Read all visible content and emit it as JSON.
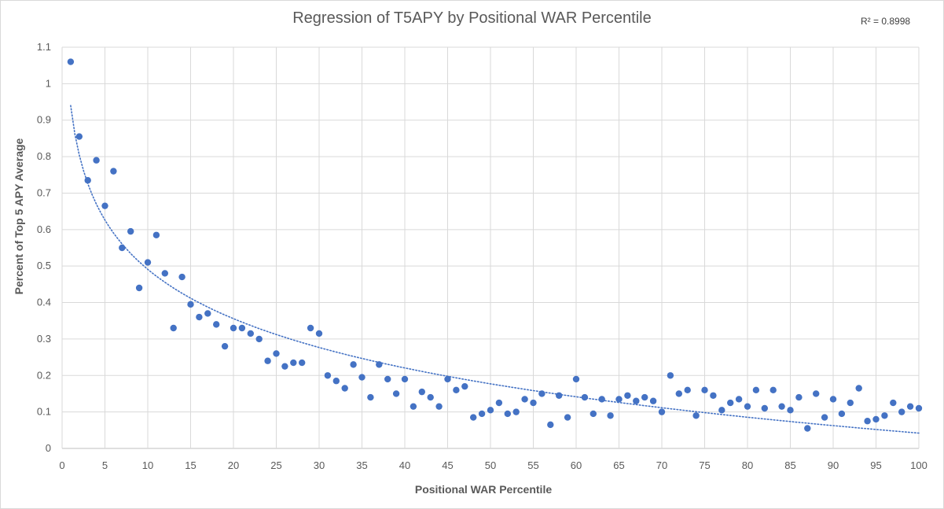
{
  "chart_data": {
    "type": "scatter",
    "title": "Regression of T5APY by Positional WAR Percentile",
    "xlabel": "Positional WAR Percentile",
    "ylabel": "Percent of Top 5 APY Average",
    "r_squared_label": "R² = 0.8998",
    "xlim": [
      0,
      100
    ],
    "ylim": [
      0,
      1.1
    ],
    "x_ticks": [
      0,
      5,
      10,
      15,
      20,
      25,
      30,
      35,
      40,
      45,
      50,
      55,
      60,
      65,
      70,
      75,
      80,
      85,
      90,
      95,
      100
    ],
    "y_ticks": [
      0,
      0.1,
      0.2,
      0.3,
      0.4,
      0.5,
      0.6,
      0.7,
      0.8,
      0.9,
      1,
      1.1
    ],
    "grid": true,
    "marker_color": "#4472c4",
    "trendline": {
      "type": "logarithmic",
      "style": "dotted",
      "color": "#4472c4",
      "a": 0.94,
      "b": -0.195
    },
    "x": [
      1,
      2,
      3,
      4,
      5,
      6,
      7,
      8,
      9,
      10,
      11,
      12,
      13,
      14,
      15,
      16,
      17,
      18,
      19,
      20,
      21,
      22,
      23,
      24,
      25,
      26,
      27,
      28,
      29,
      30,
      31,
      32,
      33,
      34,
      35,
      36,
      37,
      38,
      39,
      40,
      41,
      42,
      43,
      44,
      45,
      46,
      47,
      48,
      49,
      50,
      51,
      52,
      53,
      54,
      55,
      56,
      57,
      58,
      59,
      60,
      61,
      62,
      63,
      64,
      65,
      66,
      67,
      68,
      69,
      70,
      71,
      72,
      73,
      74,
      75,
      76,
      77,
      78,
      79,
      80,
      81,
      82,
      83,
      84,
      85,
      86,
      87,
      88,
      89,
      90,
      91,
      92,
      93,
      94,
      95,
      96,
      97,
      98,
      99,
      100
    ],
    "y": [
      1.06,
      0.855,
      0.735,
      0.79,
      0.665,
      0.76,
      0.55,
      0.595,
      0.44,
      0.51,
      0.585,
      0.48,
      0.33,
      0.47,
      0.395,
      0.36,
      0.37,
      0.34,
      0.28,
      0.33,
      0.33,
      0.315,
      0.3,
      0.24,
      0.26,
      0.225,
      0.235,
      0.235,
      0.33,
      0.315,
      0.2,
      0.185,
      0.165,
      0.23,
      0.195,
      0.14,
      0.23,
      0.19,
      0.15,
      0.19,
      0.115,
      0.155,
      0.14,
      0.115,
      0.19,
      0.16,
      0.17,
      0.085,
      0.095,
      0.105,
      0.125,
      0.095,
      0.1,
      0.135,
      0.125,
      0.15,
      0.065,
      0.145,
      0.085,
      0.19,
      0.14,
      0.095,
      0.135,
      0.09,
      0.135,
      0.145,
      0.13,
      0.14,
      0.13,
      0.1,
      0.2,
      0.15,
      0.16,
      0.09,
      0.16,
      0.145,
      0.105,
      0.125,
      0.135,
      0.115,
      0.16,
      0.11,
      0.16,
      0.115,
      0.105,
      0.14,
      0.055,
      0.15,
      0.085,
      0.135,
      0.095,
      0.125,
      0.165,
      0.075,
      0.08,
      0.09,
      0.125,
      0.1,
      0.115,
      0.11
    ]
  }
}
